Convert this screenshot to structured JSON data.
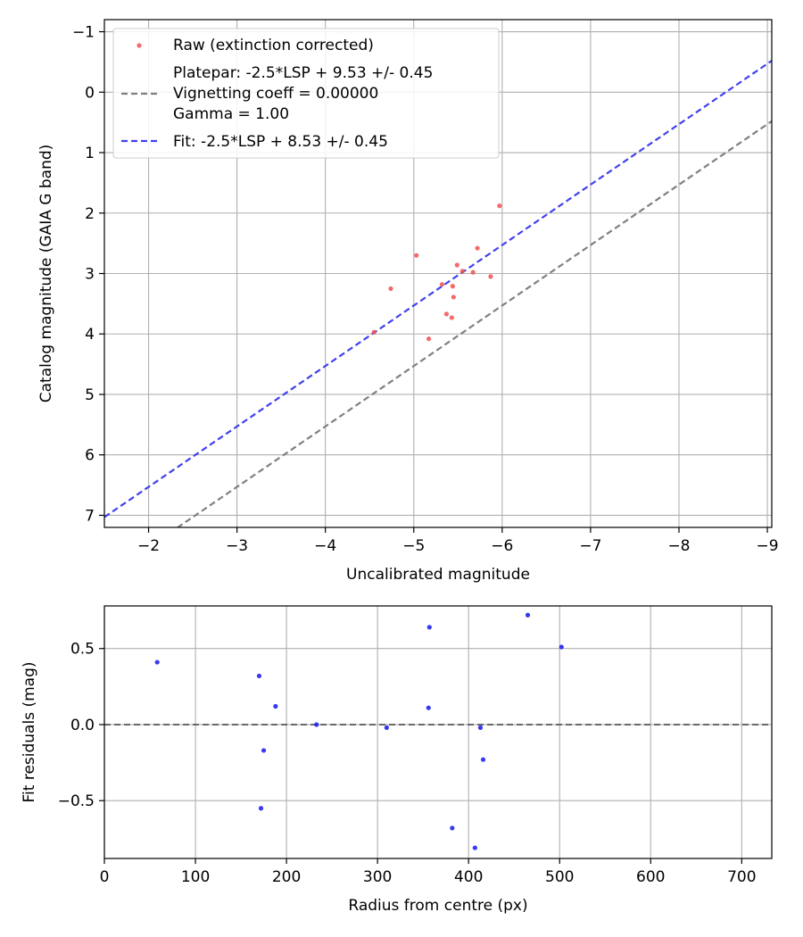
{
  "chart_data": [
    {
      "type": "scatter",
      "xlabel": "Uncalibrated magnitude",
      "ylabel": "Catalog magnitude (GAIA G band)",
      "xlim": [
        -1.5,
        -9.05
      ],
      "ylim": [
        7.2,
        -1.2
      ],
      "x_inverted": true,
      "y_inverted": true,
      "xticks": [
        -2,
        -3,
        -4,
        -5,
        -6,
        -7,
        -8,
        -9
      ],
      "yticks": [
        -1,
        0,
        1,
        2,
        3,
        4,
        5,
        6,
        7
      ],
      "xtick_labels": [
        "−2",
        "−3",
        "−4",
        "−5",
        "−6",
        "−7",
        "−8",
        "−9"
      ],
      "ytick_labels": [
        "−1",
        "0",
        "1",
        "2",
        "3",
        "4",
        "5",
        "6",
        "7"
      ],
      "grid": true,
      "legend_position": "top-left",
      "legend": [
        "Raw (extinction corrected)",
        "Platepar: -2.5*LSP + 9.53 +/- 0.45",
        "Vignetting coeff = 0.00000",
        "Gamma = 1.00",
        "Fit: -2.5*LSP + 8.53 +/- 0.45"
      ],
      "series": [
        {
          "name": "Raw (extinction corrected)",
          "kind": "scatter",
          "color": "#f05050",
          "points": [
            [
              -4.55,
              3.97
            ],
            [
              -4.74,
              3.25
            ],
            [
              -5.03,
              2.7
            ],
            [
              -5.17,
              4.08
            ],
            [
              -5.32,
              3.18
            ],
            [
              -5.37,
              3.67
            ],
            [
              -5.43,
              3.73
            ],
            [
              -5.44,
              3.21
            ],
            [
              -5.45,
              3.39
            ],
            [
              -5.49,
              2.86
            ],
            [
              -5.55,
              2.96
            ],
            [
              -5.67,
              2.98
            ],
            [
              -5.72,
              2.58
            ],
            [
              -5.87,
              3.05
            ],
            [
              -5.97,
              1.88
            ]
          ]
        },
        {
          "name": "Platepar",
          "kind": "line",
          "color": "#808080",
          "slope": 1,
          "intercept": 9.53
        },
        {
          "name": "Fit",
          "kind": "line",
          "color": "#4040ee",
          "slope": 1,
          "intercept": 8.53
        }
      ]
    },
    {
      "type": "scatter",
      "xlabel": "Radius from centre (px)",
      "ylabel": "Fit residuals (mag)",
      "xlim": [
        0,
        733
      ],
      "ylim": [
        -0.88,
        0.78
      ],
      "xticks": [
        0,
        100,
        200,
        300,
        400,
        500,
        600,
        700
      ],
      "yticks": [
        -0.5,
        0.0,
        0.5
      ],
      "xtick_labels": [
        "0",
        "100",
        "200",
        "300",
        "400",
        "500",
        "600",
        "700"
      ],
      "ytick_labels": [
        "−0.5",
        "0.0",
        "0.5"
      ],
      "grid": true,
      "zero_line": {
        "y": 0,
        "color": "#555555"
      },
      "series": [
        {
          "kind": "scatter",
          "color": "#2222ee",
          "points": [
            [
              58,
              0.41
            ],
            [
              170,
              0.32
            ],
            [
              172,
              -0.55
            ],
            [
              175,
              -0.17
            ],
            [
              188,
              0.12
            ],
            [
              233,
              0.0
            ],
            [
              310,
              -0.02
            ],
            [
              356,
              0.11
            ],
            [
              357,
              0.64
            ],
            [
              382,
              -0.68
            ],
            [
              407,
              -0.81
            ],
            [
              413,
              -0.02
            ],
            [
              416,
              -0.23
            ],
            [
              465,
              0.72
            ],
            [
              502,
              0.51
            ]
          ]
        }
      ]
    }
  ]
}
